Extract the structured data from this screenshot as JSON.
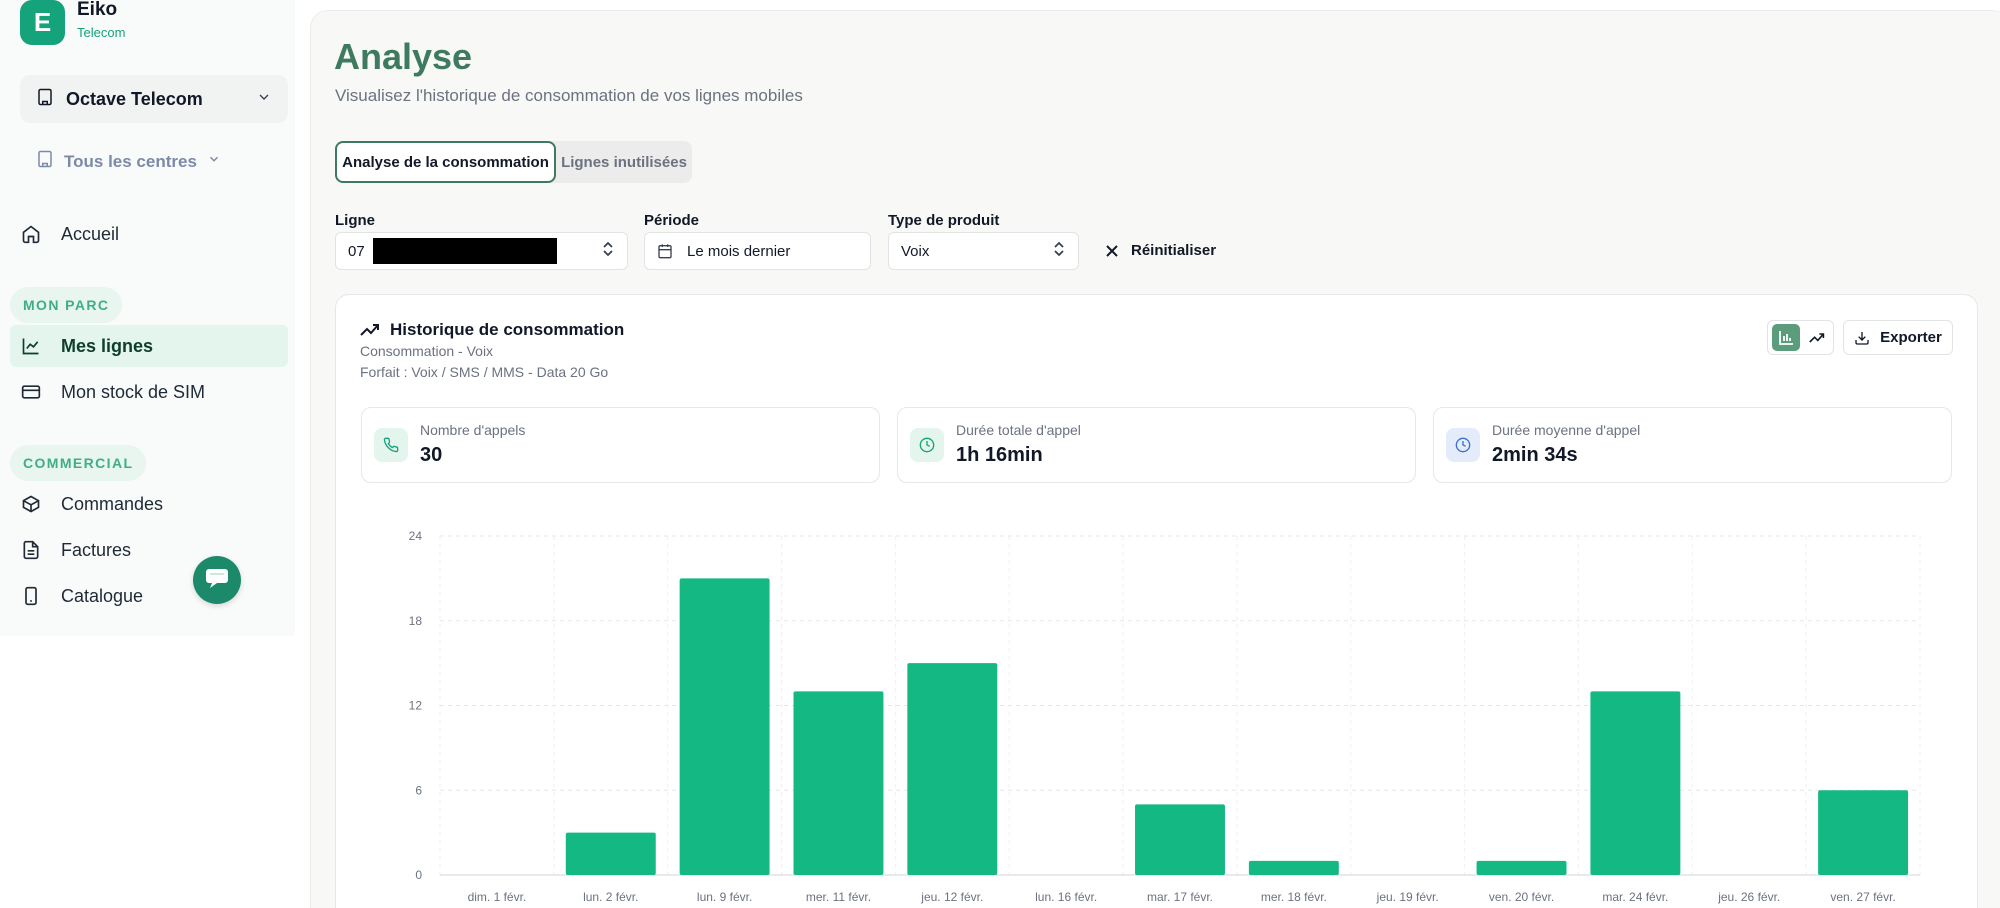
{
  "brand": {
    "initial": "E",
    "name": "Eiko",
    "sub": "Telecom"
  },
  "sidebar": {
    "org": "Octave Telecom",
    "centres": "Tous les centres",
    "home": "Accueil",
    "section_parc": "MON PARC",
    "mes_lignes": "Mes lignes",
    "stock_sim": "Mon stock de SIM",
    "section_commercial": "COMMERCIAL",
    "commandes": "Commandes",
    "factures": "Factures",
    "catalogue": "Catalogue"
  },
  "page": {
    "title": "Analyse",
    "subtitle": "Visualisez l'historique de consommation de vos lignes mobiles"
  },
  "tabs": [
    {
      "label": "Analyse de la consommation"
    },
    {
      "label": "Lignes inutilisées"
    }
  ],
  "filters": {
    "ligne_label": "Ligne",
    "ligne_value": "07",
    "periode_label": "Période",
    "periode_value": "Le mois dernier",
    "type_label": "Type de produit",
    "type_value": "Voix",
    "reset_label": "Réinitialiser"
  },
  "card": {
    "title": "Historique de consommation",
    "sub1": "Consommation - Voix",
    "sub2": "Forfait : Voix / SMS / MMS - Data 20 Go",
    "export_label": "Exporter"
  },
  "stats": [
    {
      "label": "Nombre d'appels",
      "value": "30",
      "icon": "phone-icon",
      "color": "#14a37a",
      "bg": "#e3f5ec"
    },
    {
      "label": "Durée totale d'appel",
      "value": "1h 16min",
      "icon": "clock-icon",
      "color": "#14a37a",
      "bg": "#e3f5ec"
    },
    {
      "label": "Durée moyenne d'appel",
      "value": "2min 34s",
      "icon": "clock-icon",
      "color": "#3b6fd4",
      "bg": "#e4ecfb"
    }
  ],
  "chart_data": {
    "type": "bar",
    "categories": [
      "dim. 1 févr.",
      "lun. 2 févr.",
      "lun. 9 févr.",
      "mer. 11 févr.",
      "jeu. 12 févr.",
      "lun. 16 févr.",
      "mar. 17 févr.",
      "mer. 18 févr.",
      "jeu. 19 févr.",
      "ven. 20 févr.",
      "mar. 24 févr.",
      "jeu. 26 févr.",
      "ven. 27 févr."
    ],
    "values": [
      0,
      3,
      21,
      13,
      15,
      0,
      5,
      1,
      0,
      1,
      13,
      0,
      6
    ],
    "ylim": [
      0,
      24
    ],
    "yticks": [
      0,
      6,
      12,
      18,
      24
    ],
    "grid": true,
    "bar_color": "#14b882"
  },
  "colors": {
    "accent": "#3d7a5f",
    "brand": "#14a37a",
    "bar": "#14b882"
  }
}
